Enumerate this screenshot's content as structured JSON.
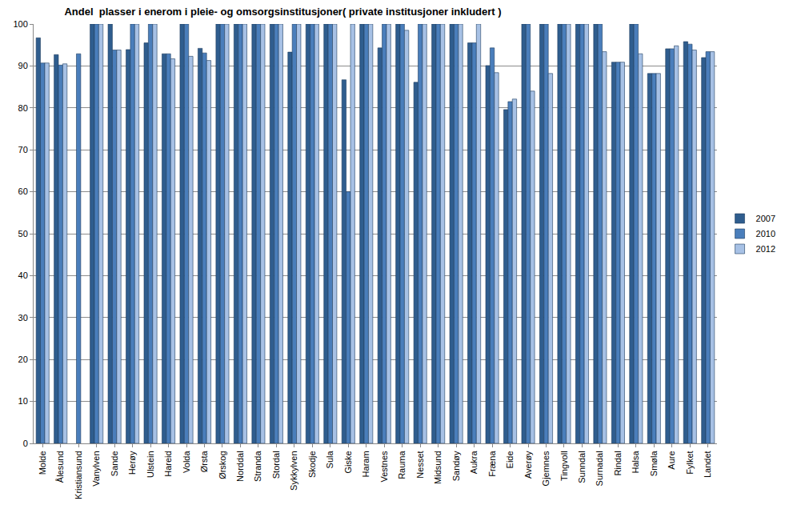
{
  "chart_data": {
    "type": "bar",
    "title": "Andel  plasser i enerom i pleie- og omsorgsinstitusjoner( private institusjoner inkludert )",
    "categories": [
      "Molde",
      "Ålesund",
      "Kristiansund",
      "Vanylven",
      "Sande",
      "Herøy",
      "Ulstein",
      "Hareid",
      "Volda",
      "Ørsta",
      "Ørskog",
      "Norddal",
      "Stranda",
      "Stordal",
      "Sykkylven",
      "Skodje",
      "Sula",
      "Giske",
      "Haram",
      "Vestnes",
      "Rauma",
      "Nesset",
      "Midsund",
      "Sandøy",
      "Aukra",
      "Fræna",
      "Eide",
      "Averøy",
      "Gjemnes",
      "Tingvoll",
      "Sunndal",
      "Surnadal",
      "Rindal",
      "Halsa",
      "Smøla",
      "Aure",
      "Fylket",
      "Landet"
    ],
    "series": [
      {
        "name": "2007",
        "color": "#2f5d8e",
        "values": [
          96.7,
          92.7,
          null,
          100,
          100,
          93.9,
          95.5,
          92.9,
          100,
          94.2,
          100,
          100,
          100,
          100,
          93.3,
          100,
          100,
          86.7,
          100,
          94.3,
          100,
          86.1,
          100,
          100,
          95.5,
          90.1,
          79.6,
          100,
          100,
          100,
          100,
          100,
          90.9,
          100,
          88.2,
          94.1,
          95.8,
          92.0
        ]
      },
      {
        "name": "2010",
        "color": "#4a7ebb",
        "values": [
          90.7,
          90.2,
          92.9,
          100,
          93.8,
          100,
          100,
          92.9,
          100,
          93.1,
          100,
          100,
          100,
          100,
          100,
          100,
          100,
          60.0,
          100,
          100,
          100,
          100,
          100,
          100,
          95.5,
          94.3,
          81.5,
          100,
          100,
          100,
          100,
          100,
          90.9,
          100,
          88.2,
          94.1,
          95.2,
          93.4
        ]
      },
      {
        "name": "2012",
        "color": "#a7c1e5",
        "values": [
          90.7,
          90.5,
          null,
          100,
          93.8,
          100,
          100,
          91.7,
          92.3,
          91.3,
          100,
          100,
          100,
          100,
          100,
          100,
          100,
          100,
          100,
          100,
          98.5,
          100,
          100,
          100,
          100,
          88.4,
          82.1,
          84.0,
          88.2,
          100,
          100,
          93.4,
          90.9,
          92.9,
          88.2,
          94.8,
          93.8,
          93.4
        ]
      }
    ],
    "ylim": [
      0,
      100
    ],
    "yticks": [
      0,
      10,
      20,
      30,
      40,
      50,
      60,
      70,
      80,
      90,
      100
    ],
    "grid": true,
    "legend": "right"
  }
}
